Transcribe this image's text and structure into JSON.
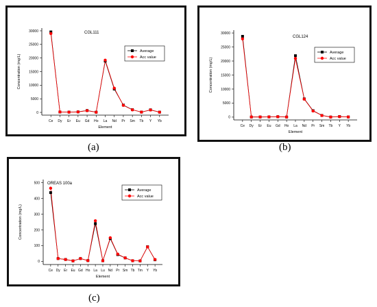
{
  "captions": {
    "a": "(a)",
    "b": "(b)",
    "c": "(c)"
  },
  "chart_data": [
    {
      "type": "line",
      "title": "CGL111",
      "xlabel": "Element",
      "ylabel": "Concentration (mg/L)",
      "categories": [
        "Ce",
        "Dy",
        "Er",
        "Eu",
        "Gd",
        "Ho",
        "La",
        "Nd",
        "Pr",
        "Sm",
        "Tb",
        "Y",
        "Yb"
      ],
      "ylim": [
        -1000,
        31000
      ],
      "yticks": [
        0,
        5000,
        10000,
        15000,
        20000,
        25000,
        30000
      ],
      "legend_position": "top-right",
      "series": [
        {
          "name": "Average",
          "color": "#000000",
          "marker": "square",
          "values": [
            29600,
            150,
            120,
            200,
            700,
            80,
            18900,
            8600,
            2700,
            1000,
            120,
            950,
            100
          ]
        },
        {
          "name": "Acc value",
          "color": "#ff0000",
          "marker": "circle",
          "values": [
            29000,
            180,
            100,
            180,
            650,
            60,
            19200,
            8900,
            2600,
            950,
            130,
            900,
            80
          ]
        }
      ]
    },
    {
      "type": "line",
      "title": "CGL124",
      "xlabel": "Element",
      "ylabel": "Concentration (mg/L)",
      "categories": [
        "Ce",
        "Dy",
        "Er",
        "Eu",
        "Gd",
        "Ho",
        "La",
        "Nd",
        "Pr",
        "Sm",
        "Tb",
        "Y",
        "Yb"
      ],
      "ylim": [
        -1000,
        31000
      ],
      "yticks": [
        0,
        5000,
        10000,
        15000,
        20000,
        25000,
        30000
      ],
      "legend_position": "top-right",
      "series": [
        {
          "name": "Average",
          "color": "#000000",
          "marker": "square",
          "values": [
            28800,
            50,
            60,
            80,
            150,
            40,
            21900,
            6500,
            2300,
            600,
            40,
            200,
            60
          ]
        },
        {
          "name": "Acc value",
          "color": "#ff0000",
          "marker": "circle",
          "values": [
            27900,
            40,
            50,
            70,
            140,
            30,
            20900,
            6400,
            2200,
            580,
            30,
            180,
            50
          ]
        }
      ]
    },
    {
      "type": "line",
      "title": "OREAS 100a",
      "xlabel": "Element",
      "ylabel": "Concentration (mg/L)",
      "categories": [
        "Ce",
        "Dy",
        "Er",
        "Eu",
        "Gd",
        "Ho",
        "La",
        "Lu",
        "Nd",
        "Pr",
        "Sm",
        "Tb",
        "Tm",
        "Y",
        "Yb"
      ],
      "ylim": [
        -20,
        520
      ],
      "yticks": [
        0,
        100,
        200,
        300,
        400,
        500
      ],
      "legend_position": "top-right",
      "series": [
        {
          "name": "Average",
          "color": "#000000",
          "marker": "square",
          "values": [
            437,
            18,
            12,
            3,
            18,
            5,
            240,
            4,
            145,
            43,
            22,
            4,
            3,
            93,
            10
          ]
        },
        {
          "name": "Acc value",
          "color": "#ff0000",
          "marker": "circle",
          "values": [
            465,
            18,
            12,
            3,
            18,
            5,
            258,
            4,
            150,
            46,
            22,
            4,
            3,
            92,
            12
          ]
        }
      ]
    }
  ]
}
